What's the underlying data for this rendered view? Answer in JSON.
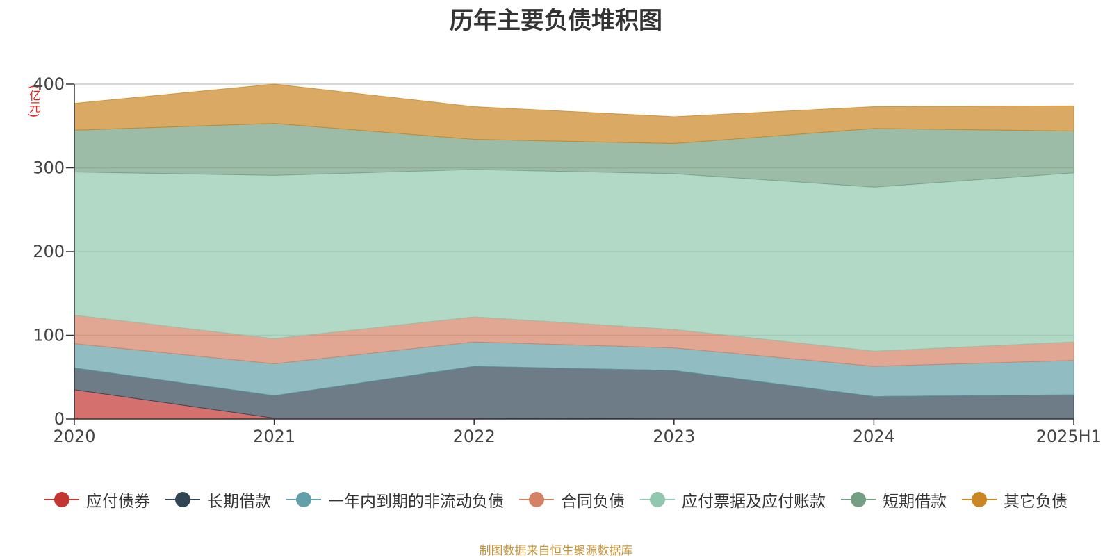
{
  "title": "历年主要负债堆积图",
  "unit_label": "(亿元)",
  "source": "制图数据来自恒生聚源数据库",
  "chart_data": {
    "type": "area",
    "stacked": true,
    "categories": [
      "2020",
      "2021",
      "2022",
      "2023",
      "2024",
      "2025H1"
    ],
    "ylim": [
      0,
      400
    ],
    "yticks": [
      0,
      100,
      200,
      300,
      400
    ],
    "grid": true,
    "legend_position": "bottom",
    "series": [
      {
        "name": "应付债券",
        "color": "#c23531",
        "values": [
          35,
          1,
          1,
          0,
          0,
          0
        ]
      },
      {
        "name": "长期借款",
        "color": "#2f4554",
        "values": [
          26,
          27,
          62,
          58,
          27,
          29
        ]
      },
      {
        "name": "一年内到期的非流动负债",
        "color": "#61a0a8",
        "values": [
          29,
          38,
          29,
          27,
          36,
          41
        ]
      },
      {
        "name": "合同负债",
        "color": "#d48265",
        "values": [
          34,
          30,
          30,
          22,
          18,
          22
        ]
      },
      {
        "name": "应付票据及应付账款",
        "color": "#91c7ae",
        "values": [
          171,
          195,
          176,
          186,
          196,
          202
        ]
      },
      {
        "name": "短期借款",
        "color": "#749f83",
        "values": [
          50,
          62,
          36,
          36,
          70,
          50
        ]
      },
      {
        "name": "其它负债",
        "color": "#ca8622",
        "values": [
          32,
          47,
          39,
          32,
          26,
          30
        ]
      }
    ]
  }
}
